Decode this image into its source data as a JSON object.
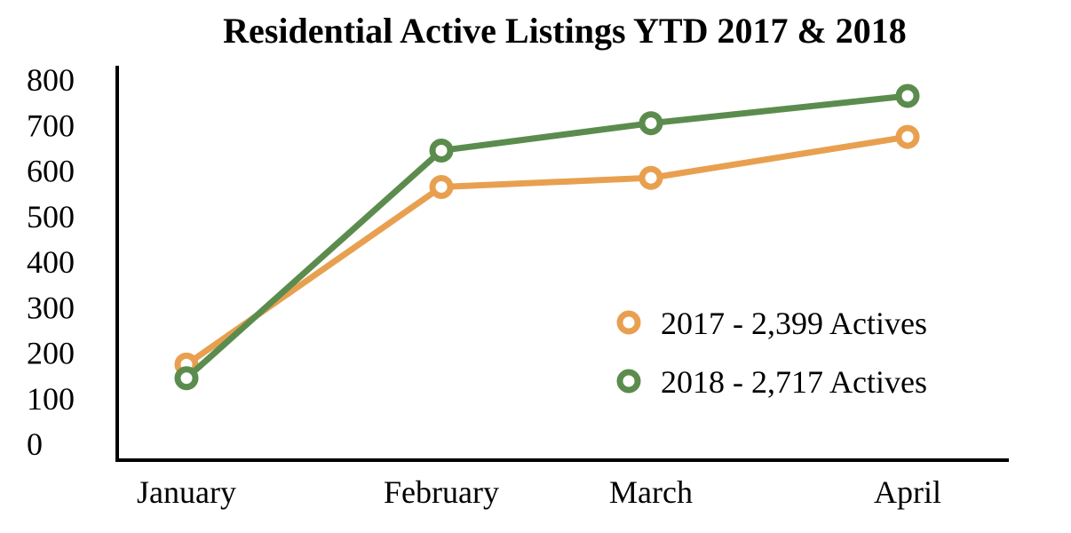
{
  "chart_data": {
    "type": "line",
    "title": "Residential Active Listings YTD 2017 & 2018",
    "xlabel": "",
    "ylabel": "",
    "categories": [
      "January",
      "February",
      "March",
      "April"
    ],
    "y_ticks": [
      "0",
      "100",
      "200",
      "300",
      "400",
      "500",
      "600",
      "700",
      "800"
    ],
    "ylim": [
      0,
      800
    ],
    "grid": false,
    "legend_position": "bottom-right",
    "series": [
      {
        "name": "2017 - 2,399 Actives",
        "values": [
          175,
          565,
          585,
          675
        ],
        "color": "#E8A050",
        "marker": "hollow-circle"
      },
      {
        "name": "2018 - 2,717 Actives",
        "values": [
          145,
          645,
          705,
          765
        ],
        "color": "#5B8C4E",
        "marker": "hollow-circle"
      }
    ]
  }
}
